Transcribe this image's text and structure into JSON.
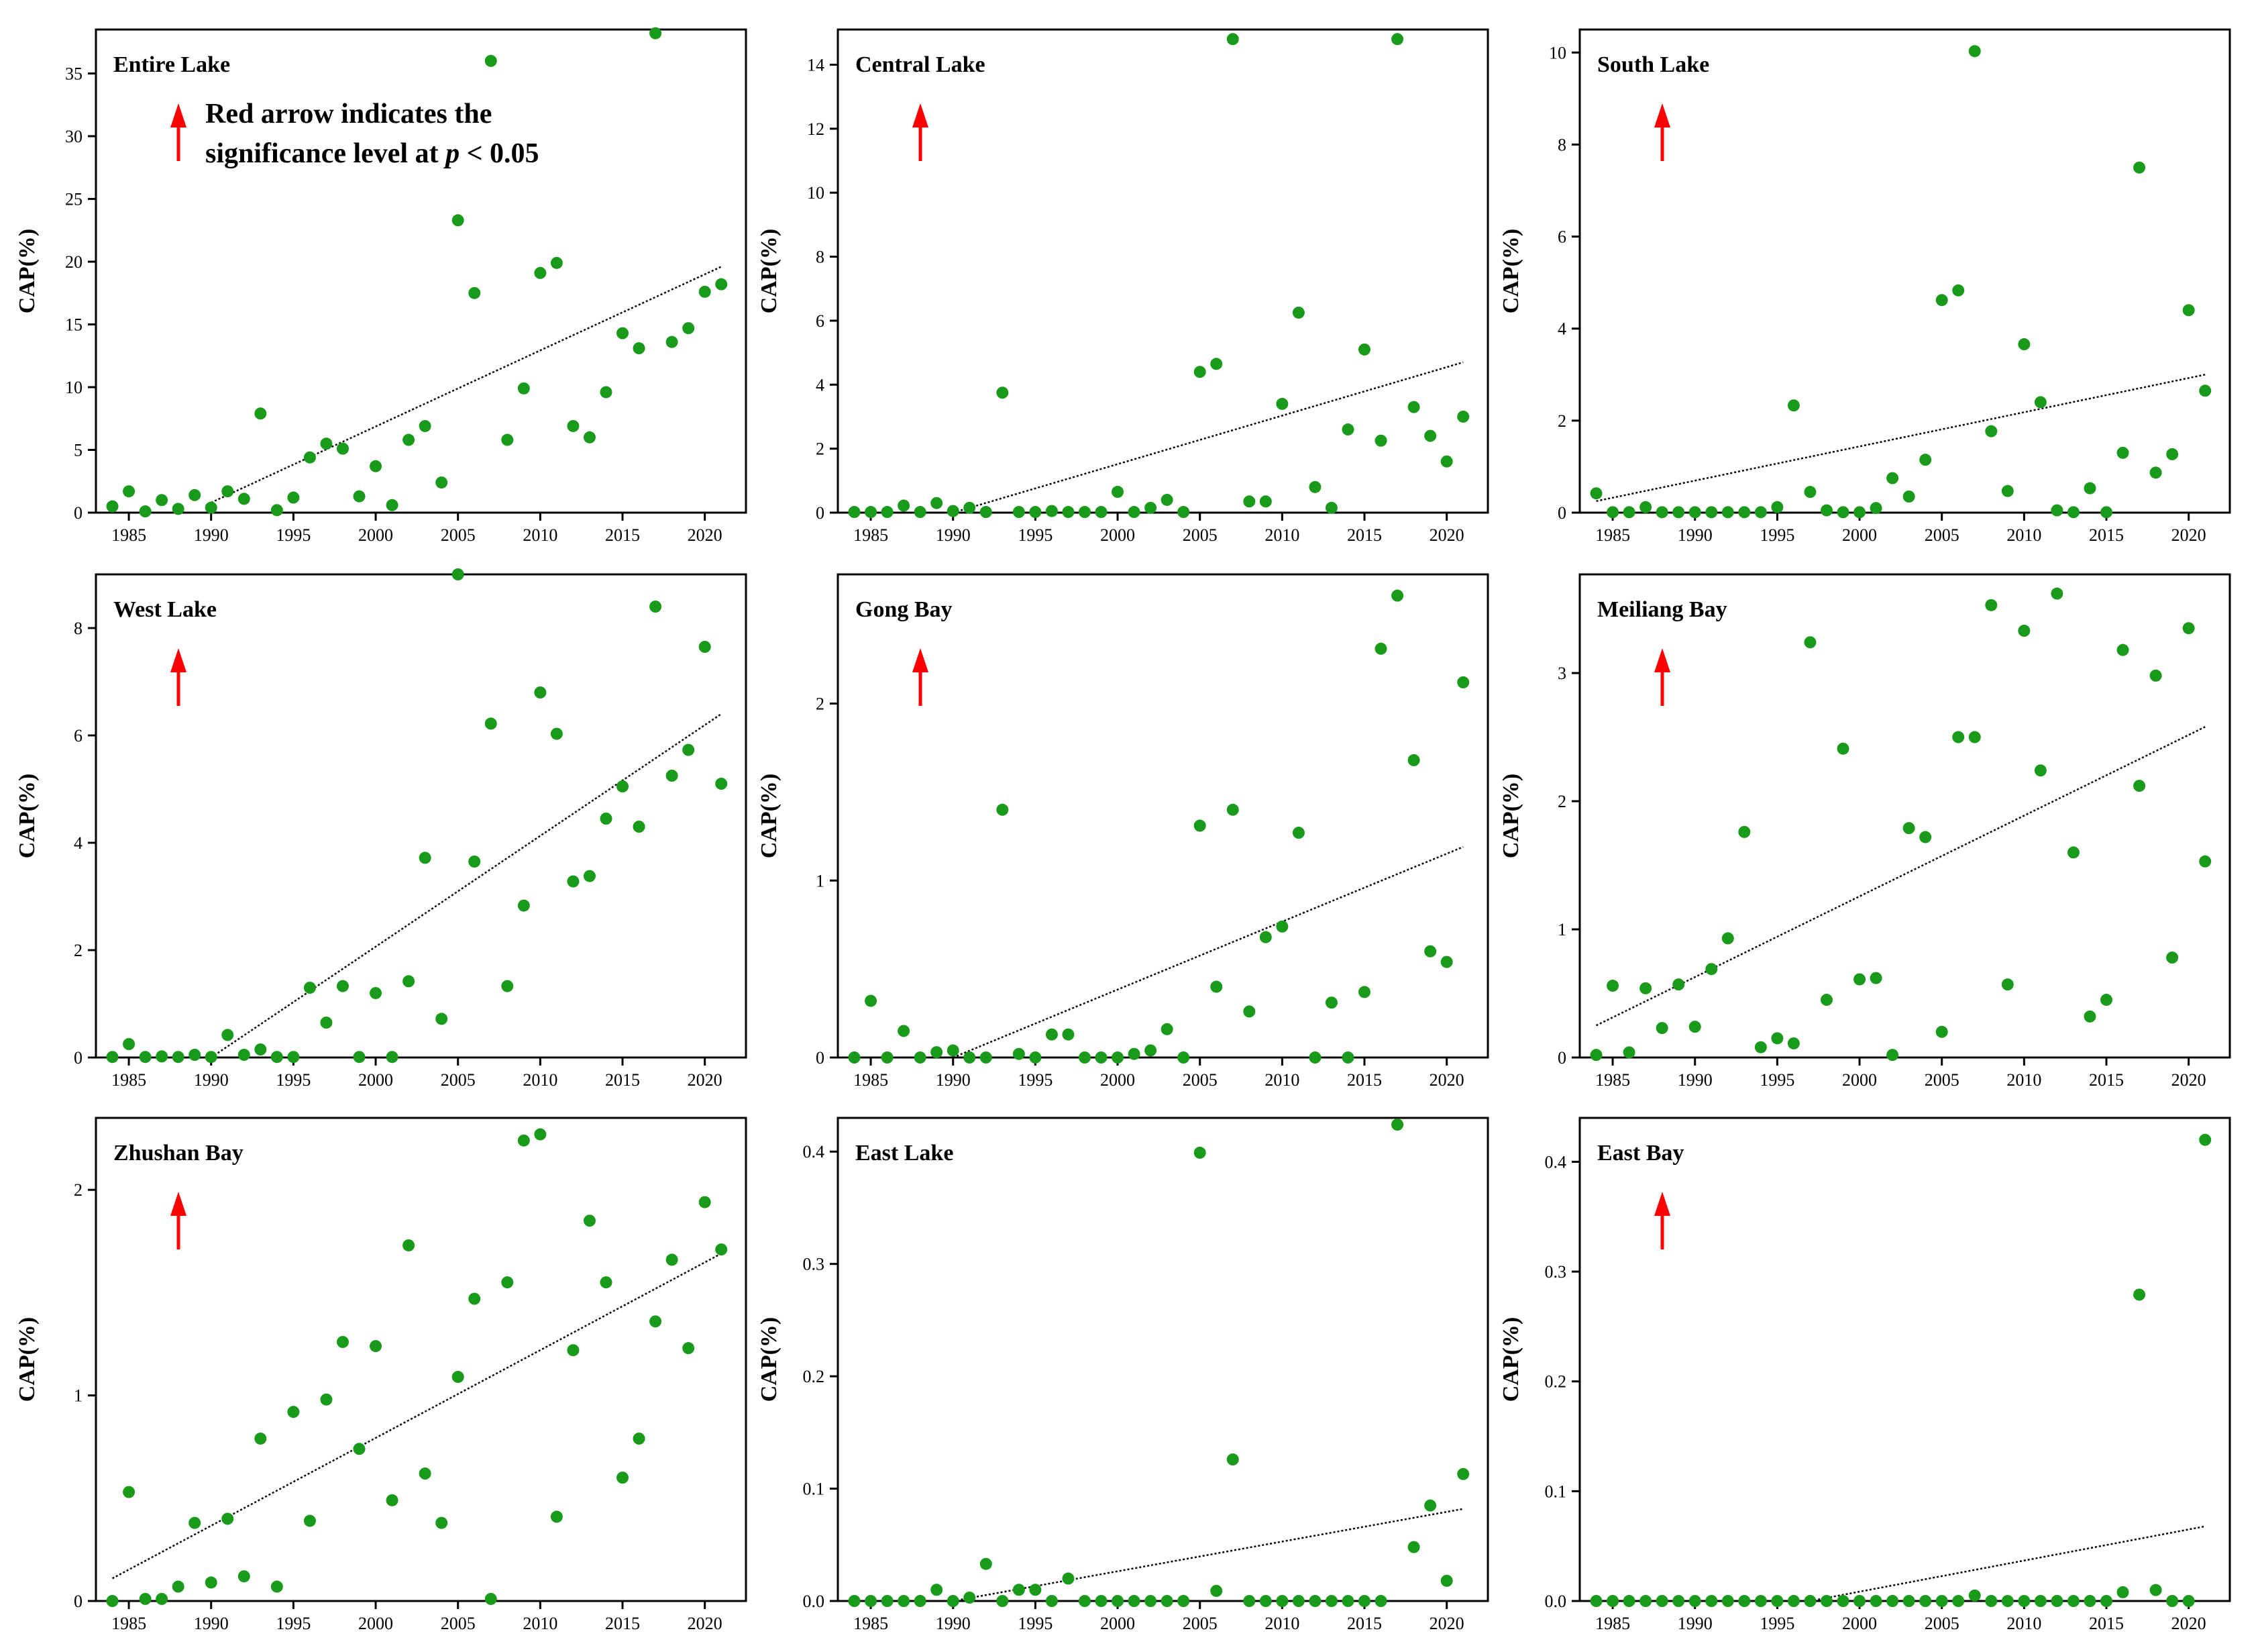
{
  "figure": {
    "arrow_color": "#ff0000",
    "point_color": "#1a9a1a",
    "trend_color": "#000000"
  },
  "annotation": {
    "line1": "Red arrow indicates the",
    "line2_prefix": "significance level at ",
    "line2_p": "p",
    "line2_suffix": " < 0.05"
  },
  "chart_data": [
    {
      "type": "scatter",
      "title": "Entire Lake",
      "ylabel": "CAP(%)",
      "significant": true,
      "x": [
        1984,
        1985,
        1986,
        1987,
        1988,
        1989,
        1990,
        1991,
        1992,
        1993,
        1994,
        1995,
        1996,
        1997,
        1998,
        1999,
        2000,
        2001,
        2002,
        2003,
        2004,
        2005,
        2006,
        2007,
        2008,
        2009,
        2010,
        2011,
        2012,
        2013,
        2014,
        2015,
        2016,
        2017,
        2018,
        2019,
        2020,
        2021
      ],
      "values": [
        0.5,
        1.7,
        0.1,
        1.0,
        0.3,
        1.4,
        0.4,
        1.7,
        1.1,
        7.9,
        0.2,
        1.2,
        4.4,
        5.5,
        5.1,
        1.3,
        3.7,
        0.6,
        5.8,
        6.9,
        2.4,
        23.3,
        17.5,
        36.0,
        5.8,
        9.9,
        19.1,
        19.9,
        6.9,
        6.0,
        9.6,
        14.3,
        13.1,
        38.2,
        13.6,
        14.7,
        17.6,
        18.2
      ],
      "trend": [
        [
          1990,
          0.8
        ],
        [
          2021,
          19.6
        ]
      ],
      "ylim": [
        0,
        38.5
      ],
      "yticks": [
        0,
        5,
        10,
        15,
        20,
        25,
        30,
        35
      ],
      "xlim": [
        1983,
        2022.5
      ],
      "xticks": [
        1985,
        1990,
        1995,
        2000,
        2005,
        2010,
        2015,
        2020
      ]
    },
    {
      "type": "scatter",
      "title": "Central Lake",
      "ylabel": "CAP(%)",
      "significant": true,
      "x": [
        1984,
        1985,
        1986,
        1987,
        1988,
        1989,
        1990,
        1991,
        1992,
        1993,
        1994,
        1995,
        1996,
        1997,
        1998,
        1999,
        2000,
        2001,
        2002,
        2003,
        2004,
        2005,
        2006,
        2007,
        2008,
        2009,
        2010,
        2011,
        2012,
        2013,
        2014,
        2015,
        2016,
        2017,
        2018,
        2019,
        2020,
        2021
      ],
      "values": [
        0.02,
        0.02,
        0.02,
        0.22,
        0.02,
        0.3,
        0.05,
        0.15,
        0.02,
        3.75,
        0.02,
        0.02,
        0.05,
        0.02,
        0.02,
        0.02,
        0.65,
        0.02,
        0.15,
        0.4,
        0.02,
        4.4,
        4.65,
        14.8,
        0.35,
        0.35,
        3.4,
        6.25,
        0.8,
        0.15,
        2.6,
        5.1,
        2.25,
        14.8,
        3.3,
        2.4,
        1.6,
        3.0
      ],
      "trend": [
        [
          1990,
          0.0
        ],
        [
          2021,
          4.7
        ]
      ],
      "ylim": [
        0,
        15.1
      ],
      "yticks": [
        0,
        2,
        4,
        6,
        8,
        10,
        12,
        14
      ],
      "xlim": [
        1983,
        2022.5
      ],
      "xticks": [
        1985,
        1990,
        1995,
        2000,
        2005,
        2010,
        2015,
        2020
      ]
    },
    {
      "type": "scatter",
      "title": "South Lake",
      "ylabel": "CAP(%)",
      "significant": true,
      "x": [
        1984,
        1985,
        1986,
        1987,
        1988,
        1989,
        1990,
        1991,
        1992,
        1993,
        1994,
        1995,
        1996,
        1997,
        1998,
        1999,
        2000,
        2001,
        2002,
        2003,
        2004,
        2005,
        2006,
        2007,
        2008,
        2009,
        2010,
        2011,
        2012,
        2013,
        2014,
        2015,
        2016,
        2017,
        2018,
        2019,
        2020,
        2021
      ],
      "values": [
        0.42,
        0.01,
        0.01,
        0.12,
        0.01,
        0.01,
        0.01,
        0.01,
        0.01,
        0.01,
        0.01,
        0.12,
        2.33,
        0.45,
        0.05,
        0.01,
        0.01,
        0.1,
        0.75,
        0.35,
        1.15,
        4.62,
        4.83,
        10.03,
        1.77,
        0.47,
        3.66,
        2.4,
        0.05,
        0.01,
        0.53,
        0.01,
        1.3,
        7.5,
        0.87,
        1.27,
        4.4,
        2.65
      ],
      "trend": [
        [
          1984,
          0.25
        ],
        [
          2021,
          3.0
        ]
      ],
      "ylim": [
        0,
        10.5
      ],
      "yticks": [
        0,
        2,
        4,
        6,
        8,
        10
      ],
      "xlim": [
        1983,
        2022.5
      ],
      "xticks": [
        1985,
        1990,
        1995,
        2000,
        2005,
        2010,
        2015,
        2020
      ]
    },
    {
      "type": "scatter",
      "title": "West Lake",
      "ylabel": "CAP(%)",
      "significant": true,
      "x": [
        1984,
        1985,
        1986,
        1987,
        1988,
        1989,
        1990,
        1991,
        1992,
        1993,
        1994,
        1995,
        1996,
        1997,
        1998,
        1999,
        2000,
        2001,
        2002,
        2003,
        2004,
        2005,
        2006,
        2007,
        2008,
        2009,
        2010,
        2011,
        2012,
        2013,
        2014,
        2015,
        2016,
        2017,
        2018,
        2019,
        2020,
        2021
      ],
      "values": [
        0.01,
        0.25,
        0.01,
        0.02,
        0.01,
        0.05,
        0.01,
        0.42,
        0.05,
        0.15,
        0.01,
        0.01,
        1.3,
        0.65,
        1.33,
        0.01,
        1.2,
        0.01,
        1.42,
        3.72,
        0.72,
        9.1,
        3.65,
        6.22,
        1.33,
        2.83,
        6.8,
        6.03,
        3.28,
        3.38,
        4.45,
        5.05,
        4.3,
        8.4,
        5.25,
        5.73,
        7.65,
        5.1
      ],
      "trend": [
        [
          1990,
          0.0
        ],
        [
          2021,
          6.4
        ]
      ],
      "ylim": [
        0,
        9.0
      ],
      "yticks": [
        0,
        2,
        4,
        6,
        8
      ],
      "xlim": [
        1983,
        2022.5
      ],
      "xticks": [
        1985,
        1990,
        1995,
        2000,
        2005,
        2010,
        2015,
        2020
      ]
    },
    {
      "type": "scatter",
      "title": "Gong Bay",
      "ylabel": "CAP(%)",
      "significant": true,
      "x": [
        1984,
        1985,
        1986,
        1987,
        1988,
        1989,
        1990,
        1991,
        1992,
        1993,
        1994,
        1995,
        1996,
        1997,
        1998,
        1999,
        2000,
        2001,
        2002,
        2003,
        2004,
        2005,
        2006,
        2007,
        2008,
        2009,
        2010,
        2011,
        2012,
        2013,
        2014,
        2015,
        2016,
        2017,
        2018,
        2019,
        2020,
        2021
      ],
      "values": [
        0.0,
        0.32,
        0.0,
        0.15,
        0.0,
        0.03,
        0.04,
        0.0,
        0.0,
        1.4,
        0.02,
        0.0,
        0.13,
        0.13,
        0.0,
        0.0,
        0.0,
        0.02,
        0.04,
        0.16,
        0.0,
        1.31,
        0.4,
        1.4,
        0.26,
        0.68,
        0.74,
        1.27,
        0.0,
        0.31,
        0.0,
        0.37,
        2.31,
        2.61,
        1.68,
        0.6,
        0.54,
        2.12
      ],
      "trend": [
        [
          1990,
          0.0
        ],
        [
          2021,
          1.19
        ]
      ],
      "ylim": [
        0,
        2.73
      ],
      "yticks": [
        0,
        1,
        2
      ],
      "xlim": [
        1983,
        2022.5
      ],
      "xticks": [
        1985,
        1990,
        1995,
        2000,
        2005,
        2010,
        2015,
        2020
      ]
    },
    {
      "type": "scatter",
      "title": "Meiliang Bay",
      "ylabel": "CAP(%)",
      "significant": true,
      "x": [
        1984,
        1985,
        1986,
        1987,
        1988,
        1989,
        1990,
        1991,
        1992,
        1993,
        1994,
        1995,
        1996,
        1997,
        1998,
        1999,
        2000,
        2001,
        2002,
        2003,
        2004,
        2005,
        2006,
        2007,
        2008,
        2009,
        2010,
        2011,
        2012,
        2013,
        2014,
        2015,
        2016,
        2017,
        2018,
        2019,
        2020,
        2021
      ],
      "values": [
        0.02,
        0.56,
        0.04,
        0.54,
        0.23,
        0.57,
        0.24,
        0.69,
        0.93,
        1.76,
        0.08,
        0.15,
        0.11,
        3.24,
        0.45,
        2.41,
        0.61,
        0.62,
        0.02,
        1.79,
        1.72,
        0.2,
        2.5,
        2.5,
        3.53,
        0.57,
        3.33,
        2.24,
        3.62,
        1.6,
        0.32,
        0.45,
        3.18,
        2.12,
        2.98,
        0.78,
        3.35,
        1.53
      ],
      "trend": [
        [
          1984,
          0.25
        ],
        [
          2021,
          2.58
        ]
      ],
      "ylim": [
        0,
        3.77
      ],
      "yticks": [
        0,
        1,
        2,
        3
      ],
      "xlim": [
        1983,
        2022.5
      ],
      "xticks": [
        1985,
        1990,
        1995,
        2000,
        2005,
        2010,
        2015,
        2020
      ]
    },
    {
      "type": "scatter",
      "title": "Zhushan Bay",
      "ylabel": "CAP(%)",
      "significant": true,
      "x": [
        1984,
        1985,
        1986,
        1987,
        1988,
        1989,
        1990,
        1991,
        1992,
        1993,
        1994,
        1995,
        1996,
        1997,
        1998,
        1999,
        2000,
        2001,
        2002,
        2003,
        2004,
        2005,
        2006,
        2007,
        2008,
        2009,
        2010,
        2011,
        2012,
        2013,
        2014,
        2015,
        2016,
        2017,
        2018,
        2019,
        2020,
        2021
      ],
      "values": [
        0.0,
        0.53,
        0.01,
        0.01,
        0.07,
        0.38,
        0.09,
        0.4,
        0.12,
        0.79,
        0.07,
        0.92,
        0.39,
        0.98,
        1.26,
        0.74,
        1.24,
        0.49,
        1.73,
        0.62,
        0.38,
        1.09,
        1.47,
        0.01,
        1.55,
        2.24,
        2.27,
        0.41,
        1.22,
        1.85,
        1.55,
        0.6,
        0.79,
        1.36,
        1.66,
        1.23,
        1.94,
        1.71
      ],
      "trend": [
        [
          1984,
          0.11
        ],
        [
          2021,
          1.69
        ]
      ],
      "ylim": [
        0,
        2.35
      ],
      "yticks": [
        0,
        1,
        2
      ],
      "xlim": [
        1983,
        2022.5
      ],
      "xticks": [
        1985,
        1990,
        1995,
        2000,
        2005,
        2010,
        2015,
        2020
      ]
    },
    {
      "type": "scatter",
      "title": "East Lake",
      "ylabel": "CAP(%)",
      "significant": false,
      "x": [
        1984,
        1985,
        1986,
        1987,
        1988,
        1989,
        1990,
        1991,
        1992,
        1993,
        1994,
        1995,
        1996,
        1997,
        1998,
        1999,
        2000,
        2001,
        2002,
        2003,
        2004,
        2005,
        2006,
        2007,
        2008,
        2009,
        2010,
        2011,
        2012,
        2013,
        2014,
        2015,
        2016,
        2017,
        2018,
        2019,
        2020,
        2021
      ],
      "values": [
        0.0,
        0.0,
        0.0,
        0.0,
        0.0,
        0.01,
        0.0,
        0.003,
        0.033,
        0.0,
        0.01,
        0.01,
        0.0,
        0.02,
        0.0,
        0.0,
        0.0,
        0.0,
        0.0,
        0.0,
        0.0,
        0.399,
        0.009,
        0.126,
        0.0,
        0.0,
        0.0,
        0.0,
        0.0,
        0.0,
        0.0,
        0.0,
        0.0,
        0.424,
        0.048,
        0.085,
        0.018,
        0.113
      ],
      "trend": [
        [
          1990,
          0.0
        ],
        [
          2021,
          0.082
        ]
      ],
      "ylim": [
        0,
        0.43
      ],
      "yticks": [
        0.0,
        0.1,
        0.2,
        0.3,
        0.4
      ],
      "xlim": [
        1983,
        2022.5
      ],
      "xticks": [
        1985,
        1990,
        1995,
        2000,
        2005,
        2010,
        2015,
        2020
      ]
    },
    {
      "type": "scatter",
      "title": "East Bay",
      "ylabel": "CAP(%)",
      "significant": true,
      "x": [
        1984,
        1985,
        1986,
        1987,
        1988,
        1989,
        1990,
        1991,
        1992,
        1993,
        1994,
        1995,
        1996,
        1997,
        1998,
        1999,
        2000,
        2001,
        2002,
        2003,
        2004,
        2005,
        2006,
        2007,
        2008,
        2009,
        2010,
        2011,
        2012,
        2013,
        2014,
        2015,
        2016,
        2017,
        2018,
        2019,
        2020,
        2021
      ],
      "values": [
        0.0,
        0.0,
        0.0,
        0.0,
        0.0,
        0.0,
        0.0,
        0.0,
        0.0,
        0.0,
        0.0,
        0.0,
        0.0,
        0.0,
        0.0,
        0.0,
        0.0,
        0.0,
        0.0,
        0.0,
        0.0,
        0.0,
        0.0,
        0.005,
        0.0,
        0.0,
        0.0,
        0.0,
        0.0,
        0.0,
        0.0,
        0.0,
        0.008,
        0.279,
        0.01,
        0.0,
        0.0,
        0.42
      ],
      "trend": [
        [
          1997,
          0.0
        ],
        [
          2021,
          0.068
        ]
      ],
      "ylim": [
        0,
        0.44
      ],
      "yticks": [
        0.0,
        0.1,
        0.2,
        0.3,
        0.4
      ],
      "xlim": [
        1983,
        2022.5
      ],
      "xticks": [
        1985,
        1990,
        1995,
        2000,
        2005,
        2010,
        2015,
        2020
      ]
    }
  ]
}
